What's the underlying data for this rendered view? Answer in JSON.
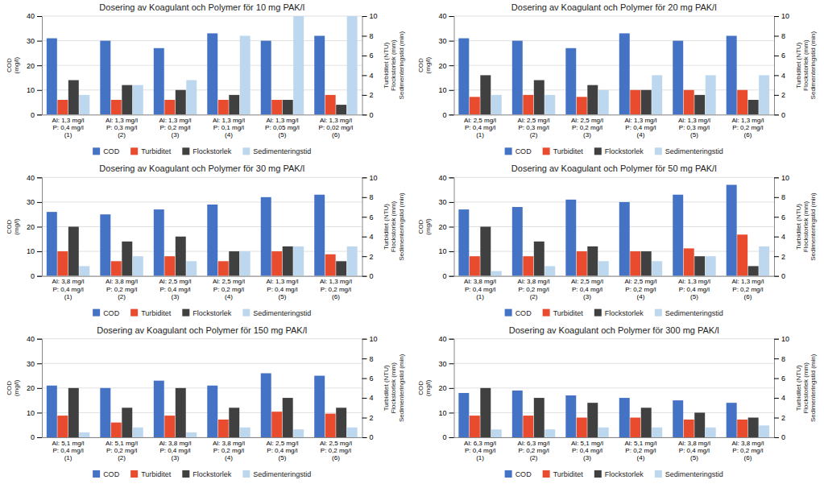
{
  "chart_data": [
    {
      "type": "bar",
      "title": "Dosering av Koagulant och Polymer för 10 mg PAK/l",
      "categories": [
        "Al: 1,3 mg/l\nP: 0,4 mg/l\n(1)",
        "Al: 1,3 mg/l\nP: 0,3 mg/l\n(2)",
        "Al: 1,3 mg/l\nP: 0,2 mg/l\n(3)",
        "Al: 1,3 mg/l\nP: 0,1 mg/l\n(4)",
        "Al: 1,3 mg/l\nP: 0,05 mg/l\n(5)",
        "Al: 1,3 mg/l\nP: 0,02 mg/l\n(6)"
      ],
      "series": [
        {
          "name": "COD",
          "color": "#4472C4",
          "values": [
            31,
            30,
            27,
            33,
            30,
            32
          ]
        },
        {
          "name": "Turbiditet",
          "color": "#E84B2E",
          "axis": "y2",
          "values": [
            1.5,
            1.5,
            1.5,
            1.5,
            1.5,
            2.0
          ]
        },
        {
          "name": "Flockstorlek",
          "color": "#404040",
          "axis": "y2",
          "values": [
            3.5,
            3.0,
            2.5,
            2.0,
            1.5,
            1.0
          ]
        },
        {
          "name": "Sedimenteringstid",
          "color": "#BDD7EE",
          "axis": "y2",
          "values": [
            2.0,
            3.0,
            3.5,
            8.0,
            10.0,
            10.0
          ]
        }
      ],
      "ylabel": "COD\n(mg/l)",
      "y2label": "Turbiditet (NTU)\nFlockstorlek (mm)\nSedimenteringstid (min)",
      "ylim": [
        0,
        40
      ],
      "yticks": [
        0,
        10,
        20,
        30,
        40
      ],
      "y2lim": [
        0,
        10
      ],
      "y2ticks": [
        0,
        2,
        4,
        6,
        8,
        10
      ],
      "grid": true,
      "legend": "bottom"
    },
    {
      "type": "bar",
      "title": "Dosering av Koagulant och Polymer för 20 mg PAK/l",
      "categories": [
        "Al: 2,5 mg/l\nP: 0,4 mg/l\n(1)",
        "Al: 2,5 mg/l\nP: 0,3 mg/l\n(2)",
        "Al: 2,5 mg/l\nP: 0,2 mg/l\n(3)",
        "Al: 1,3 mg/l\nP: 0,4 mg/l\n(4)",
        "Al: 1,3 mg/l\nP: 0,3 mg/l\n(5)",
        "Al: 1,3 mg/l\nP: 0,2 mg/l\n(6)"
      ],
      "series": [
        {
          "name": "COD",
          "color": "#4472C4",
          "values": [
            31,
            30,
            27,
            33,
            30,
            32
          ]
        },
        {
          "name": "Turbiditet",
          "color": "#E84B2E",
          "axis": "y2",
          "values": [
            1.8,
            2.0,
            1.8,
            2.5,
            2.5,
            2.5
          ]
        },
        {
          "name": "Flockstorlek",
          "color": "#404040",
          "axis": "y2",
          "values": [
            4.0,
            3.5,
            3.0,
            2.5,
            2.0,
            1.5
          ]
        },
        {
          "name": "Sedimenteringstid",
          "color": "#BDD7EE",
          "axis": "y2",
          "values": [
            2.0,
            2.0,
            2.5,
            4.0,
            4.0,
            4.0
          ]
        }
      ],
      "ylabel": "COD\n(mg/l)",
      "y2label": "Turbiditet (NTU)\nFlockstorlek (mm)\nSedimenteringstid (min)",
      "ylim": [
        0,
        40
      ],
      "yticks": [
        0,
        10,
        20,
        30,
        40
      ],
      "y2lim": [
        0,
        10
      ],
      "y2ticks": [
        0,
        2,
        4,
        6,
        8,
        10
      ],
      "grid": true,
      "legend": "bottom"
    },
    {
      "type": "bar",
      "title": "Dosering av Koagulant och Polymer för 30 mg PAK/l",
      "categories": [
        "Al: 3,8 mg/l\nP: 0,4 mg/l\n(1)",
        "Al: 3,8 mg/l\nP: 0,2 mg/l\n(2)",
        "Al: 2,5 mg/l\nP: 0,4 mg/l\n(3)",
        "Al: 2,5 mg/l\nP: 0,2 mg/l\n(4)",
        "Al: 1,3 mg/l\nP: 0,4 mg/l\n(5)",
        "Al: 1,3 mg/l\nP: 0,2 mg/l\n(6)"
      ],
      "series": [
        {
          "name": "COD",
          "color": "#4472C4",
          "values": [
            26,
            25,
            27,
            29,
            32,
            33
          ]
        },
        {
          "name": "Turbiditet",
          "color": "#E84B2E",
          "axis": "y2",
          "values": [
            2.5,
            1.5,
            2.0,
            1.5,
            2.5,
            2.2
          ]
        },
        {
          "name": "Flockstorlek",
          "color": "#404040",
          "axis": "y2",
          "values": [
            5.0,
            3.5,
            4.0,
            2.5,
            3.0,
            1.5
          ]
        },
        {
          "name": "Sedimenteringstid",
          "color": "#BDD7EE",
          "axis": "y2",
          "values": [
            1.0,
            2.0,
            1.5,
            2.5,
            3.0,
            3.0
          ]
        }
      ],
      "ylabel": "COD\n(mg/l)",
      "y2label": "Turbiditet (NTU)\nFlockstorlek (mm)\nSedimenteringstid (min)",
      "ylim": [
        0,
        40
      ],
      "yticks": [
        0,
        10,
        20,
        30,
        40
      ],
      "y2lim": [
        0,
        10
      ],
      "y2ticks": [
        0,
        2,
        4,
        6,
        8,
        10
      ],
      "grid": true,
      "legend": "bottom"
    },
    {
      "type": "bar",
      "title": "Dosering av Koagulant och Polymer för 50 mg PAK/l",
      "categories": [
        "Al: 3,8 mg/l\nP: 0,4 mg/l\n(1)",
        "Al: 3,8 mg/l\nP: 0,2 mg/l\n(2)",
        "Al: 2,5 mg/l\nP: 0,4 mg/l\n(3)",
        "Al: 2,5 mg/l\nP: 0,2 mg/l\n(4)",
        "Al: 1,3 mg/l\nP: 0,4 mg/l\n(5)",
        "Al: 1,3 mg/l\nP: 0,2 mg/l\n(6)"
      ],
      "series": [
        {
          "name": "COD",
          "color": "#4472C4",
          "values": [
            27,
            28,
            31,
            30,
            33,
            37
          ]
        },
        {
          "name": "Turbiditet",
          "color": "#E84B2E",
          "axis": "y2",
          "values": [
            2.0,
            2.0,
            2.5,
            2.5,
            2.8,
            4.2
          ]
        },
        {
          "name": "Flockstorlek",
          "color": "#404040",
          "axis": "y2",
          "values": [
            5.0,
            3.5,
            3.0,
            2.5,
            2.0,
            1.0
          ]
        },
        {
          "name": "Sedimenteringstid",
          "color": "#BDD7EE",
          "axis": "y2",
          "values": [
            0.5,
            1.0,
            1.5,
            1.5,
            2.0,
            3.0
          ]
        }
      ],
      "ylabel": "COD\n(mg/l)",
      "y2label": "Turbiditet (NTU)\nFlockstorlek (mm)\nSedimenteringstid (min)",
      "ylim": [
        0,
        40
      ],
      "yticks": [
        0,
        10,
        20,
        30,
        40
      ],
      "y2lim": [
        0,
        10
      ],
      "y2ticks": [
        0,
        2,
        4,
        6,
        8,
        10
      ],
      "grid": true,
      "legend": "bottom"
    },
    {
      "type": "bar",
      "title": "Dosering av Koagulant och Polymer för 150 mg PAK/l",
      "categories": [
        "Al: 5,1 mg/l\nP: 0,4 mg/l\n(1)",
        "Al: 5,1 mg/l\nP: 0,2 mg/l\n(2)",
        "Al: 3,8 mg/l\nP: 0,4 mg/l\n(3)",
        "Al: 3,8 mg/l\nP: 0,2 mg/l\n(4)",
        "Al: 2,5 mg/l\nP: 0,4 mg/l\n(5)",
        "Al: 2,5 mg/l\nP: 0,2 mg/l\n(6)"
      ],
      "series": [
        {
          "name": "COD",
          "color": "#4472C4",
          "values": [
            21,
            20,
            23,
            21,
            26,
            25
          ]
        },
        {
          "name": "Turbiditet",
          "color": "#E84B2E",
          "axis": "y2",
          "values": [
            2.2,
            1.5,
            2.2,
            1.8,
            2.6,
            2.4
          ]
        },
        {
          "name": "Flockstorlek",
          "color": "#404040",
          "axis": "y2",
          "values": [
            5.0,
            3.0,
            5.0,
            3.0,
            4.0,
            3.0
          ]
        },
        {
          "name": "Sedimenteringstid",
          "color": "#BDD7EE",
          "axis": "y2",
          "values": [
            0.5,
            1.0,
            0.5,
            1.0,
            0.8,
            1.0
          ]
        }
      ],
      "ylabel": "COD\n(mg/l)",
      "y2label": "Turbiditet (NTU)\nFlockstorlek (mm)\nSedimenteringstid (min)",
      "ylim": [
        0,
        40
      ],
      "yticks": [
        0,
        10,
        20,
        30,
        40
      ],
      "y2lim": [
        0,
        10
      ],
      "y2ticks": [
        0,
        2,
        4,
        6,
        8,
        10
      ],
      "grid": true,
      "legend": "bottom"
    },
    {
      "type": "bar",
      "title": "Dosering av Koagulant och Polymer för 300 mg PAK/l",
      "categories": [
        "Al: 6,3 mg/l\nP: 0,4 mg/l\n(1)",
        "Al: 6,3 mg/l\nP: 0,2 mg/l\n(2)",
        "Al: 5,1 mg/l\nP: 0,4 mg/l\n(3)",
        "Al: 5,1 mg/l\nP: 0,2 mg/l\n(4)",
        "Al: 3,8 mg/l\nP: 0,4 mg/l\n(5)",
        "Al: 3,8 mg/l\nP: 0,2 mg/l\n(6)"
      ],
      "series": [
        {
          "name": "COD",
          "color": "#4472C4",
          "values": [
            18,
            19,
            17,
            16,
            15,
            14
          ]
        },
        {
          "name": "Turbiditet",
          "color": "#E84B2E",
          "axis": "y2",
          "values": [
            2.2,
            2.2,
            2.0,
            2.0,
            1.8,
            1.8
          ]
        },
        {
          "name": "Flockstorlek",
          "color": "#404040",
          "axis": "y2",
          "values": [
            5.0,
            4.0,
            3.5,
            3.0,
            2.5,
            2.0
          ]
        },
        {
          "name": "Sedimenteringstid",
          "color": "#BDD7EE",
          "axis": "y2",
          "values": [
            0.8,
            0.8,
            1.0,
            1.0,
            1.0,
            1.2
          ]
        }
      ],
      "ylabel": "COD\n(mg/l)",
      "y2label": "Turbiditet (NTU)\nFlockstorlek (mm)\nSedimenteringstid (min)",
      "ylim": [
        0,
        40
      ],
      "yticks": [
        0,
        10,
        20,
        30,
        40
      ],
      "y2lim": [
        0,
        10
      ],
      "y2ticks": [
        0,
        2,
        4,
        6,
        8,
        10
      ],
      "grid": true,
      "legend": "bottom"
    }
  ]
}
